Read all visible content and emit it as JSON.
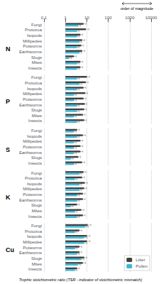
{
  "chart_data": [
    {
      "type": "bar",
      "orientation": "horizontal",
      "title": "N",
      "categories": [
        "Fungi",
        "Protozoa",
        "Isopods",
        "Millipedes",
        "Potworms",
        "Earthworms",
        "Slugs",
        "Mites",
        "Insects"
      ],
      "series": [
        {
          "name": "Litter",
          "color": "#404040",
          "values": [
            7.0,
            9.0,
            5.0,
            6.0,
            5.5,
            6.0,
            2.5,
            5.0,
            5.0
          ],
          "errors": [
            2.5,
            3.5,
            1.5,
            2.0,
            1.5,
            2.0,
            0.7,
            1.5,
            1.5
          ]
        },
        {
          "name": "Pollen",
          "color": "#3ab8d8",
          "values": [
            4.0,
            3.5,
            3.5,
            4.5,
            3.5,
            4.5,
            1.5,
            3.5,
            3.5
          ],
          "errors": [
            1.2,
            0.9,
            0.9,
            1.2,
            0.9,
            1.2,
            0.4,
            0.9,
            0.9
          ]
        }
      ],
      "xlim": [
        0.1,
        10000
      ],
      "xticks": [
        0.1,
        1,
        10,
        100,
        1000,
        10000
      ],
      "log": "x",
      "grid": true,
      "annotations": [
        "order of magnitude"
      ]
    },
    {
      "type": "bar",
      "orientation": "horizontal",
      "title": "P",
      "categories": [
        "Fungi",
        "Protozoa",
        "Isopods",
        "Millipedes",
        "Potworms",
        "Earthworms",
        "Slugs",
        "Mites",
        "Insects"
      ],
      "series": [
        {
          "name": "Litter",
          "color": "#404040",
          "values": [
            10.0,
            9.0,
            7.0,
            8.5,
            7.0,
            8.0,
            7.5,
            6.5,
            7.5
          ],
          "errors": [
            3.5,
            2.5,
            2.0,
            2.5,
            2.0,
            2.0,
            2.0,
            1.8,
            2.0
          ]
        },
        {
          "name": "Pollen",
          "color": "#3ab8d8",
          "values": [
            3.5,
            4.5,
            3.5,
            2.5,
            2.5,
            3.5,
            3.5,
            2.5,
            3.5
          ],
          "errors": [
            0.9,
            1.2,
            0.9,
            0.7,
            0.7,
            0.9,
            0.9,
            0.7,
            0.9
          ]
        }
      ],
      "xlim": [
        0.1,
        10000
      ],
      "xticks": [
        0.1,
        1,
        10,
        100,
        1000,
        10000
      ],
      "log": "x",
      "grid": true,
      "tick_labels": "y"
    },
    {
      "type": "bar",
      "orientation": "horizontal",
      "title": "S",
      "categories": [
        "Fungi",
        "Isopods",
        "Millipedes",
        "Potworms",
        "Earthworms",
        "Slugs",
        "Insects"
      ],
      "series": [
        {
          "name": "Litter",
          "color": "#404040",
          "values": [
            3.5,
            6.5,
            5.0,
            5.0,
            5.0,
            4.0,
            6.0
          ],
          "errors": [
            1.0,
            2.0,
            1.5,
            1.5,
            1.5,
            1.2,
            2.0
          ]
        },
        {
          "name": "Pollen",
          "color": "#3ab8d8",
          "values": [
            2.5,
            3.5,
            2.5,
            2.5,
            2.5,
            1.8,
            2.5
          ],
          "errors": [
            0.7,
            0.9,
            0.7,
            0.7,
            0.7,
            0.5,
            0.7
          ]
        }
      ],
      "xlim": [
        0.1,
        10000
      ],
      "xticks": [
        0.1,
        1,
        10,
        100,
        1000,
        10000
      ],
      "log": "x",
      "grid": true,
      "tick_labels": "y"
    },
    {
      "type": "bar",
      "orientation": "horizontal",
      "title": "K",
      "categories": [
        "Fungi",
        "Protozoa",
        "Isopods",
        "Millipedes",
        "Potworms",
        "Earthworms",
        "Slugs",
        "Mites",
        "Insects"
      ],
      "series": [
        {
          "name": "Litter",
          "color": "#404040",
          "values": [
            7.0,
            6.0,
            8.0,
            7.5,
            6.5,
            6.5,
            3.5,
            5.5,
            6.5
          ],
          "errors": [
            2.0,
            1.8,
            2.5,
            2.2,
            1.8,
            1.8,
            1.0,
            1.8,
            1.8
          ]
        },
        {
          "name": "Pollen",
          "color": "#3ab8d8",
          "values": [
            4.5,
            2.8,
            4.5,
            4.5,
            3.5,
            3.5,
            1.8,
            2.8,
            3.5
          ],
          "errors": [
            1.2,
            0.7,
            1.2,
            1.2,
            0.9,
            0.9,
            0.5,
            0.7,
            0.9
          ]
        }
      ],
      "xlim": [
        0.1,
        10000
      ],
      "xticks": [
        0.1,
        1,
        10,
        100,
        1000,
        10000
      ],
      "log": "x",
      "grid": true,
      "tick_labels": "y"
    },
    {
      "type": "bar",
      "orientation": "horizontal",
      "title": "Cu",
      "categories": [
        "Fungi",
        "Protozoa",
        "Isopods",
        "Millipedes",
        "Potworms",
        "Earthworms",
        "Slugs",
        "Mites",
        "Insects"
      ],
      "series": [
        {
          "name": "Litter",
          "color": "#404040",
          "values": [
            11.0,
            4.5,
            10.0,
            10.0,
            4.5,
            4.5,
            7.5,
            6.5,
            3.5
          ],
          "errors": [
            4.5,
            1.3,
            4.0,
            4.0,
            1.3,
            1.3,
            2.5,
            2.2,
            1.0
          ]
        },
        {
          "name": "Pollen",
          "color": "#3ab8d8",
          "values": [
            8.5,
            2.8,
            7.5,
            7.5,
            2.8,
            3.5,
            5.5,
            3.8,
            2.8
          ],
          "errors": [
            3.2,
            0.7,
            2.8,
            2.8,
            0.7,
            1.0,
            2.0,
            1.2,
            0.7
          ]
        }
      ],
      "xlim": [
        0.1,
        10000
      ],
      "xticks": [
        0.1,
        1,
        10,
        100,
        1000,
        10000
      ],
      "log": "x",
      "grid": true,
      "tick_labels": "y",
      "legend": "lower right",
      "xlabel": "Trophic stoichiometric ratio (TSR - indicator of stoichiometric mismatch)"
    }
  ]
}
